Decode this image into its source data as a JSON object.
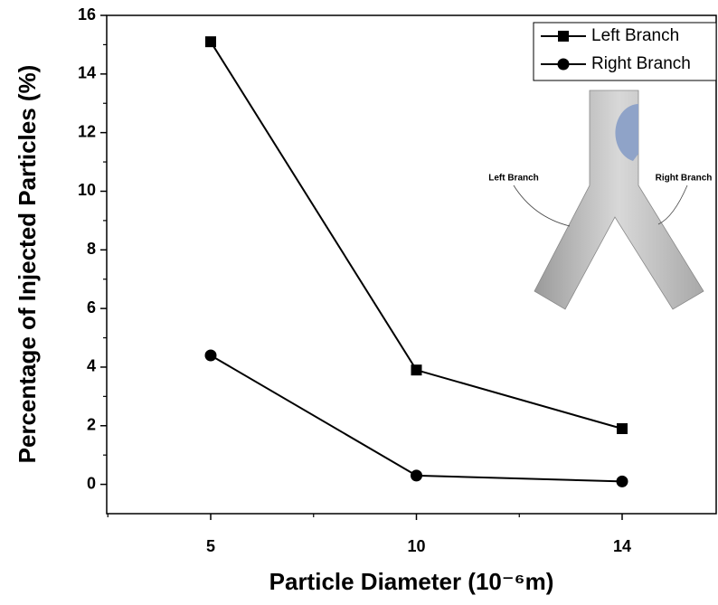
{
  "chart_data": {
    "type": "line",
    "x_label": "Particle Diameter (10⁻⁶m)",
    "y_label": "Percentage of Injected Particles (%)",
    "categories": [
      "5",
      "10",
      "14"
    ],
    "series": [
      {
        "name": "Left Branch",
        "color": "#000000",
        "marker": "square",
        "values": [
          15.1,
          3.9,
          1.9
        ]
      },
      {
        "name": "Right Branch",
        "color": "#000000",
        "marker": "circle",
        "values": [
          4.4,
          0.3,
          0.1
        ]
      }
    ],
    "ylim": [
      -1,
      16
    ],
    "yticks": [
      0,
      2,
      4,
      6,
      8,
      10,
      12,
      14,
      16
    ],
    "legend": "top-right",
    "inset_labels": [
      "Left Branch",
      "Right Branch"
    ]
  }
}
